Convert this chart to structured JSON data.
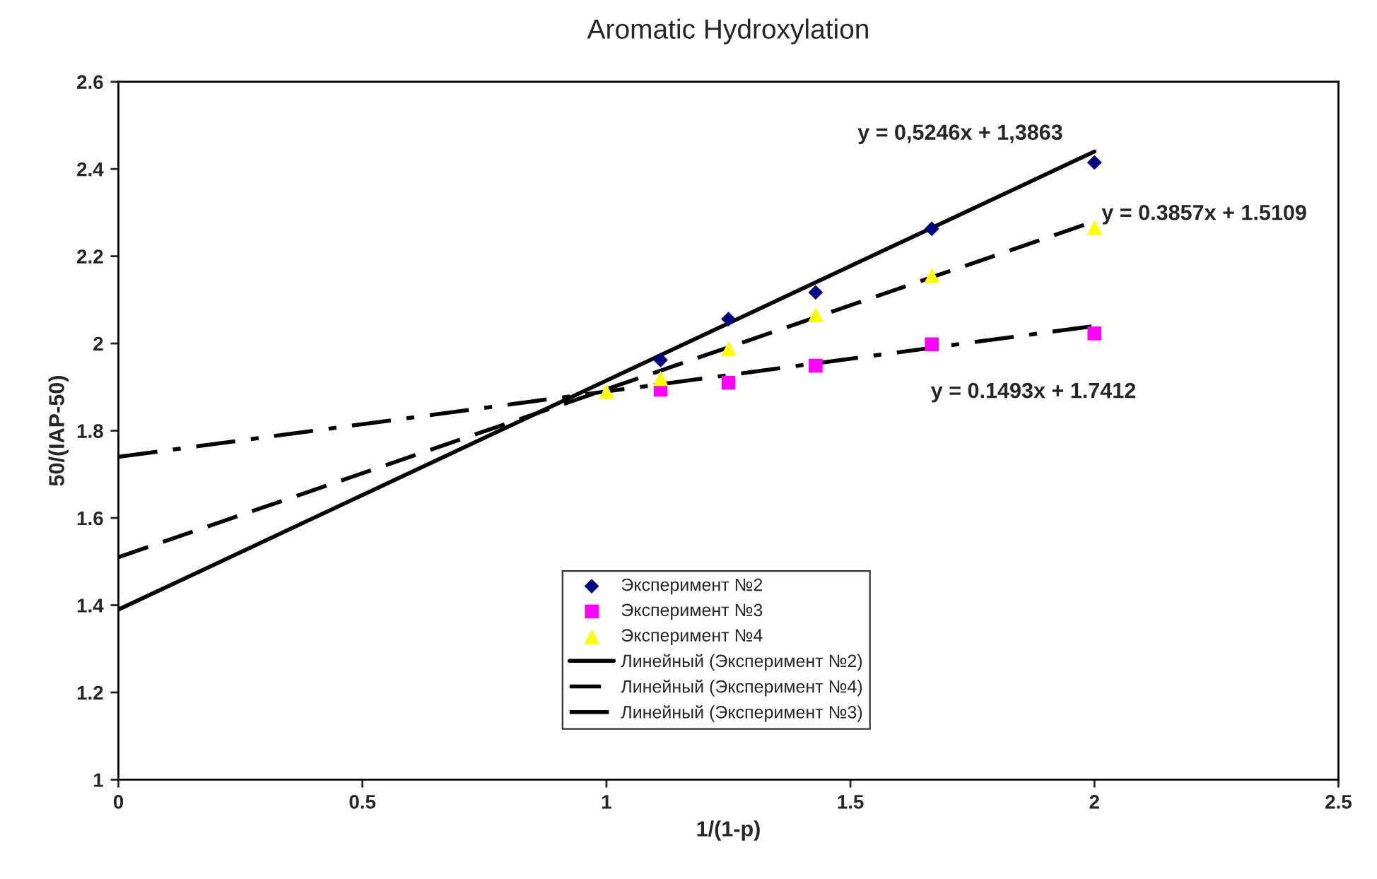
{
  "chart_data": {
    "type": "scatter",
    "title": "Aromatic Hydroxylation",
    "xlabel": "1/(1-p)",
    "ylabel": "50/(IAP-50)",
    "xlim": [
      0,
      2.5
    ],
    "xticks": [
      0,
      0.5,
      1,
      1.5,
      2,
      2.5
    ],
    "ylim": [
      1,
      2.6
    ],
    "yticks": [
      1,
      1.2,
      1.4,
      1.6,
      1.8,
      2,
      2.2,
      2.4,
      2.6
    ],
    "grid": false,
    "legend": "bottom",
    "series": [
      {
        "name": "Эксперимент №2",
        "marker": "diamond",
        "color": "#000080",
        "x": [
          1.111,
          1.25,
          1.4286,
          1.6667,
          2
        ],
        "values": [
          1.962,
          2.056,
          2.117,
          2.263,
          2.415
        ]
      },
      {
        "name": "Эксперимент №3",
        "marker": "square",
        "color": "#ff00ff",
        "x": [
          1.111,
          1.25,
          1.4286,
          1.6667,
          2
        ],
        "values": [
          1.894,
          1.91,
          1.949,
          1.998,
          2.023
        ]
      },
      {
        "name": "Эксперимент №4",
        "marker": "triangle",
        "color": "#ffff00",
        "x": [
          1,
          1.111,
          1.25,
          1.4286,
          1.6667,
          2
        ],
        "values": [
          1.89,
          1.92,
          1.988,
          2.066,
          2.156,
          2.266
        ]
      },
      {
        "name": "Линейный (Эксперимент №2)",
        "type": "line",
        "line_style": "solid",
        "color": "#000000",
        "x": [
          0,
          2
        ],
        "values": [
          1.39,
          2.44
        ]
      },
      {
        "name": "Линейный (Эксперимент №4)",
        "type": "line",
        "line_style": "dashed",
        "color": "#000000",
        "x": [
          0,
          2
        ],
        "values": [
          1.51,
          2.28
        ]
      },
      {
        "name": "Линейный (Эксперимент №3)",
        "type": "line",
        "line_style": "dashdot",
        "color": "#000000",
        "x": [
          0,
          2
        ],
        "values": [
          1.74,
          2.04
        ]
      }
    ],
    "annotations": [
      "y = 0,5246x + 1,3863",
      "y = 0.3857x + 1.5109",
      "y = 0.1493x + 1.7412"
    ]
  }
}
